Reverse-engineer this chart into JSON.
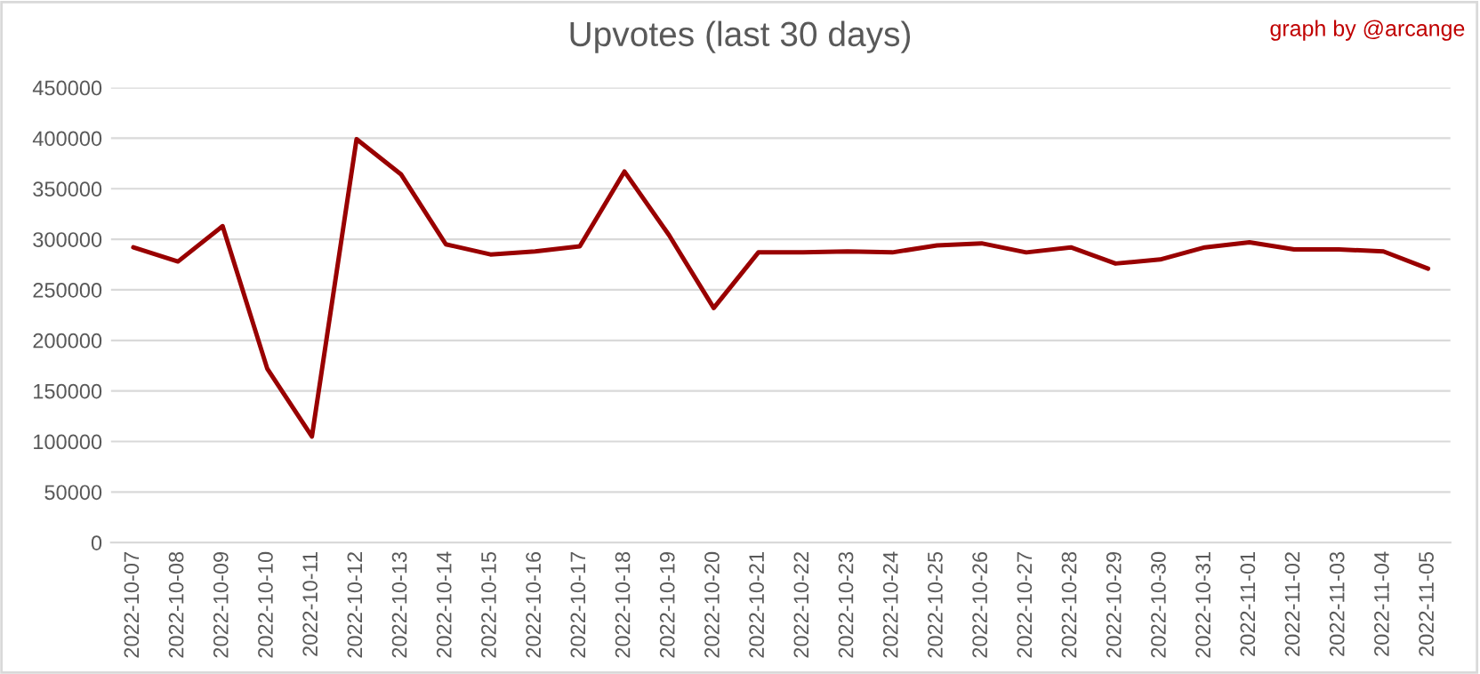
{
  "chart_data": {
    "type": "line",
    "title": "Upvotes (last 30 days)",
    "annotations": [
      "graph by @arcange"
    ],
    "categories": [
      "2022-10-07",
      "2022-10-08",
      "2022-10-09",
      "2022-10-10",
      "2022-10-11",
      "2022-10-12",
      "2022-10-13",
      "2022-10-14",
      "2022-10-15",
      "2022-10-16",
      "2022-10-17",
      "2022-10-18",
      "2022-10-19",
      "2022-10-20",
      "2022-10-21",
      "2022-10-22",
      "2022-10-23",
      "2022-10-24",
      "2022-10-25",
      "2022-10-26",
      "2022-10-27",
      "2022-10-28",
      "2022-10-29",
      "2022-10-30",
      "2022-10-31",
      "2022-11-01",
      "2022-11-02",
      "2022-11-03",
      "2022-11-04",
      "2022-11-05"
    ],
    "series": [
      {
        "color": "#990000",
        "values": [
          292000,
          278000,
          313000,
          172000,
          105000,
          399000,
          364000,
          295000,
          285000,
          288000,
          293000,
          367000,
          304000,
          232000,
          287000,
          287000,
          288000,
          287000,
          294000,
          296000,
          287000,
          292000,
          276000,
          280000,
          292000,
          297000,
          290000,
          290000,
          288000,
          271000
        ]
      }
    ],
    "ylim": [
      0,
      450000
    ],
    "yticks": [
      0,
      50000,
      100000,
      150000,
      200000,
      250000,
      300000,
      350000,
      400000,
      450000
    ],
    "grid": "y",
    "marker": "none",
    "line_style": "solid"
  }
}
